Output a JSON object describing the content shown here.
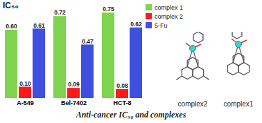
{
  "chart_data": {
    "type": "bar",
    "title": "IC₅₀",
    "categories": [
      "A-549",
      "Bel-7402",
      "HCT-8"
    ],
    "series": [
      {
        "name": "complex 1",
        "color": "#7fd34e",
        "values": [
          0.6,
          0.72,
          0.75
        ],
        "value_labels": [
          "0.60",
          "0.72",
          "0.75"
        ]
      },
      {
        "name": "complex 2",
        "color": "#ff1a1a",
        "values": [
          0.1,
          0.09,
          0.08
        ],
        "value_labels": [
          "0.10",
          "0.09",
          "0.08"
        ]
      },
      {
        "name": "5-Fu",
        "color": "#3f4fe0",
        "values": [
          0.61,
          0.47,
          0.62
        ],
        "value_labels": [
          "0.61",
          "0.47",
          "0.62"
        ]
      }
    ],
    "ylim": [
      0,
      0.8
    ],
    "data_labels": true,
    "tick_labels": "x",
    "legend": "top-right"
  },
  "figure": {
    "structure_labels": [
      "complex2",
      "complex1"
    ],
    "caption": "Anti-cancer IC₅₀ and complexes"
  }
}
